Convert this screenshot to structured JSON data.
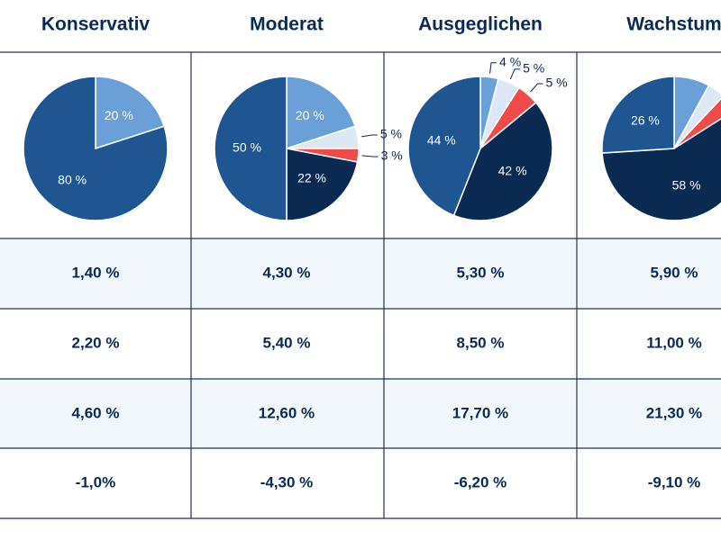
{
  "chart_data": [
    {
      "type": "pie",
      "title": "Konservativ",
      "values": [
        20,
        80
      ],
      "value_labels": [
        "20 %",
        "80 %"
      ],
      "colors": [
        "#6a9fd8",
        "#1f5591"
      ]
    },
    {
      "type": "pie",
      "title": "Moderat",
      "values": [
        20,
        5,
        3,
        22,
        50
      ],
      "value_labels": [
        "20 %",
        "5 %",
        "3 %",
        "22 %",
        "50 %"
      ],
      "colors": [
        "#6a9fd8",
        "#dce8f5",
        "#f04b4b",
        "#0b2a52",
        "#1f5591"
      ]
    },
    {
      "type": "pie",
      "title": "Ausgeglichen",
      "values": [
        4,
        5,
        5,
        42,
        44
      ],
      "value_labels": [
        "4 %",
        "5 %",
        "5 %",
        "42 %",
        "44 %"
      ],
      "colors": [
        "#6a9fd8",
        "#dce8f5",
        "#f04b4b",
        "#0b2a52",
        "#1f5591"
      ]
    },
    {
      "type": "pie",
      "title": "Wachstum",
      "values": [
        8,
        4,
        4,
        58,
        26
      ],
      "value_labels": [
        null,
        null,
        null,
        "58 %",
        "26 %"
      ],
      "colors": [
        "#6a9fd8",
        "#dce8f5",
        "#f04b4b",
        "#0b2a52",
        "#1f5591"
      ]
    }
  ],
  "table": {
    "rows": [
      [
        "1,40 %",
        "4,30 %",
        "5,30 %",
        "5,90 %"
      ],
      [
        "2,20 %",
        "5,40 %",
        "8,50 %",
        "11,00 %"
      ],
      [
        "4,60 %",
        "12,60 %",
        "17,70 %",
        "21,30 %"
      ],
      [
        "-1,0%",
        "-4,30 %",
        "-6,20 %",
        "-9,10 %"
      ]
    ]
  }
}
